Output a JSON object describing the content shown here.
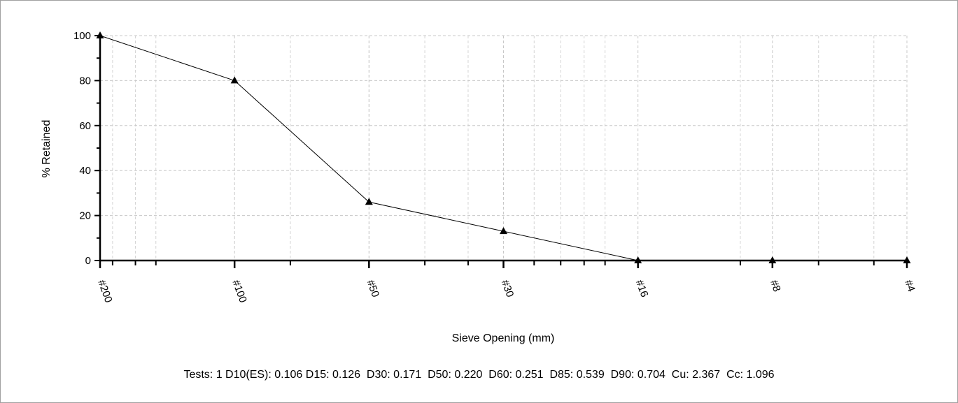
{
  "chart_data": {
    "type": "line",
    "xlabel": "Sieve Opening (mm)",
    "ylabel": "% Retained",
    "x_scale": "log",
    "xlim": [
      0.075,
      4.75
    ],
    "ylim": [
      0,
      100
    ],
    "yticks": [
      0,
      20,
      40,
      60,
      80,
      100
    ],
    "grid": true,
    "sieves": [
      {
        "label": "#200",
        "opening_mm": 0.075
      },
      {
        "label": "#100",
        "opening_mm": 0.15
      },
      {
        "label": "#50",
        "opening_mm": 0.3
      },
      {
        "label": "#30",
        "opening_mm": 0.6
      },
      {
        "label": "#16",
        "opening_mm": 1.18
      },
      {
        "label": "#8",
        "opening_mm": 2.36
      },
      {
        "label": "#4",
        "opening_mm": 4.75
      }
    ],
    "x": [
      0.075,
      0.15,
      0.3,
      0.6,
      1.18,
      2.36,
      4.75
    ],
    "y": [
      100,
      80,
      26,
      13,
      0,
      0,
      0
    ]
  },
  "stats_text": "Tests: 1 D10(ES): 0.106 D15: 0.126  D30: 0.171  D50: 0.220  D60: 0.251  D85: 0.539  D90: 0.704  Cu: 2.367  Cc: 1.096"
}
